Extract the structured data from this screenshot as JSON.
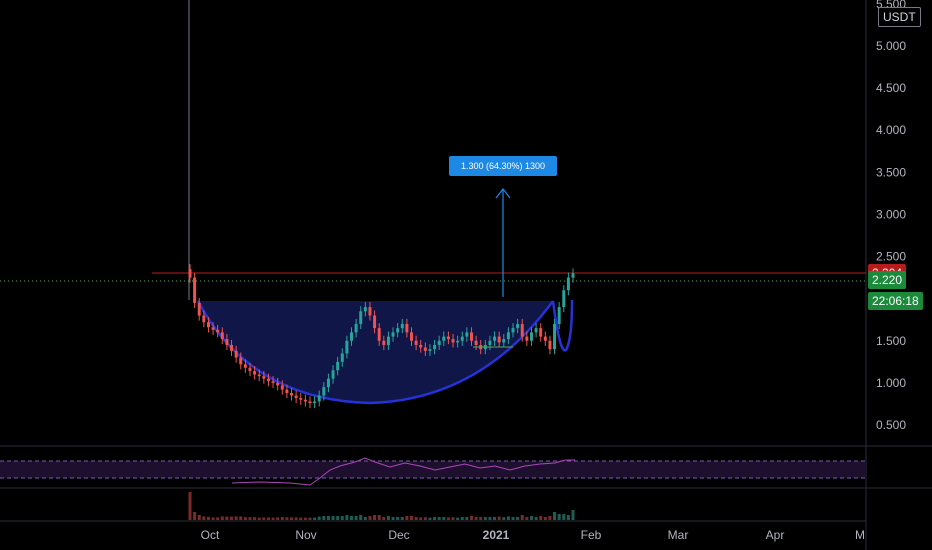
{
  "quote": "USDT",
  "chart_data": {
    "type": "candlestick",
    "y_axis": {
      "ticks": [
        "5.500",
        "5.000",
        "4.500",
        "4.000",
        "3.500",
        "3.000",
        "2.500",
        "2.000",
        "1.500",
        "1.000",
        "0.500"
      ],
      "values": [
        5.5,
        5.0,
        4.5,
        4.0,
        3.5,
        3.0,
        2.5,
        2.0,
        1.5,
        1.0,
        0.5
      ]
    },
    "x_axis": {
      "ticks": [
        "Oct",
        "Nov",
        "Dec",
        "2021",
        "Feb",
        "Mar",
        "Apr",
        "M"
      ]
    },
    "price_labels": [
      {
        "text": "2.304",
        "value": 2.304,
        "color": "#b71c1c"
      },
      {
        "text": "2.220",
        "value": 2.22,
        "color": "#1b8a3b"
      },
      {
        "text": "22:06:18",
        "value": 1.97,
        "color": "#1b8a3b"
      }
    ],
    "measure_label": "1.300 (64.30%) 1300",
    "price_series": [
      2.25,
      1.95,
      1.8,
      1.72,
      1.66,
      1.63,
      1.6,
      1.52,
      1.45,
      1.38,
      1.3,
      1.22,
      1.18,
      1.14,
      1.1,
      1.08,
      1.05,
      1.02,
      1.0,
      0.97,
      0.92,
      0.88,
      0.85,
      0.82,
      0.8,
      0.78,
      0.76,
      0.78,
      0.85,
      0.95,
      1.05,
      1.15,
      1.25,
      1.35,
      1.5,
      1.6,
      1.7,
      1.85,
      1.9,
      1.8,
      1.65,
      1.5,
      1.45,
      1.55,
      1.6,
      1.65,
      1.7,
      1.6,
      1.5,
      1.45,
      1.42,
      1.38,
      1.4,
      1.45,
      1.5,
      1.55,
      1.52,
      1.48,
      1.5,
      1.55,
      1.6,
      1.5,
      1.45,
      1.4,
      1.45,
      1.5,
      1.55,
      1.48,
      1.52,
      1.6,
      1.65,
      1.7,
      1.55,
      1.5,
      1.6,
      1.65,
      1.55,
      1.5,
      1.4,
      1.7,
      1.9,
      2.1,
      2.25,
      2.3
    ]
  }
}
